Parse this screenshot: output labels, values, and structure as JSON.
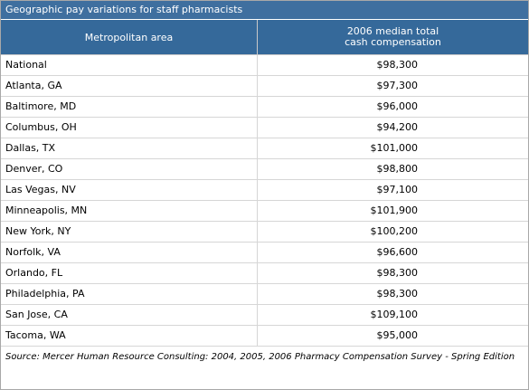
{
  "caption": "Geographic pay variations for staff pharmacists",
  "table": {
    "headers": {
      "area": "Metropolitan area",
      "comp_line1": "2006 median total",
      "comp_line2": "cash compensation"
    },
    "rows": [
      {
        "area": "National",
        "comp": "$98,300"
      },
      {
        "area": "Atlanta, GA",
        "comp": "$97,300"
      },
      {
        "area": "Baltimore, MD",
        "comp": "$96,000"
      },
      {
        "area": "Columbus, OH",
        "comp": "$94,200"
      },
      {
        "area": "Dallas, TX",
        "comp": "$101,000"
      },
      {
        "area": "Denver, CO",
        "comp": "$98,800"
      },
      {
        "area": "Las Vegas, NV",
        "comp": "$97,100"
      },
      {
        "area": "Minneapolis, MN",
        "comp": "$101,900"
      },
      {
        "area": "New York, NY",
        "comp": "$100,200"
      },
      {
        "area": "Norfolk, VA",
        "comp": "$96,600"
      },
      {
        "area": "Orlando, FL",
        "comp": "$98,300"
      },
      {
        "area": "Philadelphia, PA",
        "comp": "$98,300"
      },
      {
        "area": "San Jose, CA",
        "comp": "$109,100"
      },
      {
        "area": "Tacoma, WA",
        "comp": "$95,000"
      }
    ]
  },
  "source": "Source: Mercer Human Resource Consulting: 2004, 2005, 2006 Pharmacy Compensation Survey - Spring Edition",
  "colors": {
    "caption_bg": "#3f6f9f",
    "header_bg": "#35699a",
    "grid": "#d6d6d6"
  }
}
